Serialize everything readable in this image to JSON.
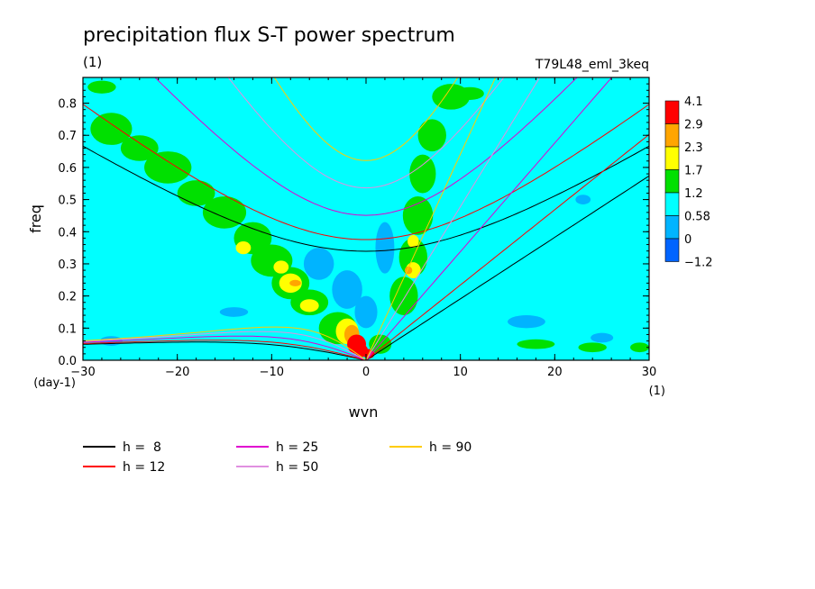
{
  "chart_data": {
    "type": "heatmap",
    "title": "precipitation flux S-T power spectrum",
    "subtitle_left": "(1)",
    "subtitle_right": "T79L48_eml_3keq",
    "xlabel": "wvn",
    "ylabel": "freq",
    "x_unit": "(1)",
    "y_unit": "(day-1)",
    "xlim": [
      -30,
      30
    ],
    "ylim": [
      0.0,
      0.88
    ],
    "x_ticks": [
      -30,
      -20,
      -10,
      0,
      10,
      20,
      30
    ],
    "x_tick_labels": [
      "−30",
      "−20",
      "−10",
      "0",
      "10",
      "20",
      "30"
    ],
    "y_ticks": [
      0.0,
      0.1,
      0.2,
      0.3,
      0.4,
      0.5,
      0.6,
      0.7,
      0.8
    ],
    "y_tick_labels": [
      "0.0",
      "0.1",
      "0.2",
      "0.3",
      "0.4",
      "0.5",
      "0.6",
      "0.7",
      "0.8"
    ],
    "colorbar": {
      "levels": [
        "4.1",
        "2.9",
        "2.3",
        "1.7",
        "1.2",
        "0.58",
        "0",
        "−1.2"
      ],
      "colors": [
        "#ff0000",
        "#ffa500",
        "#ffff00",
        "#00e000",
        "#00ffff",
        "#00b4ff",
        "#0064ff"
      ]
    },
    "dispersion_curves": [
      {
        "label": "h =  8",
        "h": 8,
        "color": "#000000"
      },
      {
        "label": "h = 12",
        "h": 12,
        "color": "#ff0000"
      },
      {
        "label": "h = 25",
        "h": 25,
        "color": "#e000d0"
      },
      {
        "label": "h = 50",
        "h": 50,
        "color": "#e090e0"
      },
      {
        "label": "h = 90",
        "h": 90,
        "color": "#ffcc00"
      }
    ],
    "background_level_color": "#00ffff",
    "blobs": [
      {
        "x": -27,
        "y": 0.72,
        "rx": 2.2,
        "ry": 0.05,
        "l": 1
      },
      {
        "x": -24,
        "y": 0.66,
        "rx": 2.0,
        "ry": 0.04,
        "l": 1
      },
      {
        "x": -21,
        "y": 0.6,
        "rx": 2.5,
        "ry": 0.05,
        "l": 1
      },
      {
        "x": -18,
        "y": 0.52,
        "rx": 2.0,
        "ry": 0.04,
        "l": 1
      },
      {
        "x": -15,
        "y": 0.46,
        "rx": 2.3,
        "ry": 0.05,
        "l": 1
      },
      {
        "x": -12,
        "y": 0.38,
        "rx": 2.0,
        "ry": 0.05,
        "l": 1
      },
      {
        "x": -10,
        "y": 0.31,
        "rx": 2.2,
        "ry": 0.05,
        "l": 1
      },
      {
        "x": -8,
        "y": 0.24,
        "rx": 2.0,
        "ry": 0.05,
        "l": 1
      },
      {
        "x": -6,
        "y": 0.18,
        "rx": 2.0,
        "ry": 0.04,
        "l": 1
      },
      {
        "x": -3,
        "y": 0.1,
        "rx": 2.0,
        "ry": 0.05,
        "l": 1
      },
      {
        "x": -13,
        "y": 0.35,
        "rx": 0.8,
        "ry": 0.02,
        "l": 2
      },
      {
        "x": -8,
        "y": 0.24,
        "rx": 1.2,
        "ry": 0.03,
        "l": 2
      },
      {
        "x": -9,
        "y": 0.29,
        "rx": 0.8,
        "ry": 0.02,
        "l": 2
      },
      {
        "x": -6,
        "y": 0.17,
        "rx": 1.0,
        "ry": 0.02,
        "l": 2
      },
      {
        "x": -2,
        "y": 0.09,
        "rx": 1.2,
        "ry": 0.04,
        "l": 2
      },
      {
        "x": -7.5,
        "y": 0.24,
        "rx": 0.6,
        "ry": 0.01,
        "l": 3
      },
      {
        "x": -1.5,
        "y": 0.08,
        "rx": 0.8,
        "ry": 0.03,
        "l": 3
      },
      {
        "x": -1,
        "y": 0.05,
        "rx": 1.0,
        "ry": 0.03,
        "l": 4
      },
      {
        "x": -0.5,
        "y": 0.03,
        "rx": 0.7,
        "ry": 0.02,
        "l": 5
      },
      {
        "x": 0.3,
        "y": 0.02,
        "rx": 0.6,
        "ry": 0.015,
        "l": 6
      },
      {
        "x": 1.5,
        "y": 0.05,
        "rx": 1.2,
        "ry": 0.03,
        "l": 1
      },
      {
        "x": 4,
        "y": 0.2,
        "rx": 1.5,
        "ry": 0.06,
        "l": 1
      },
      {
        "x": 5,
        "y": 0.32,
        "rx": 1.5,
        "ry": 0.06,
        "l": 1
      },
      {
        "x": 5.5,
        "y": 0.45,
        "rx": 1.6,
        "ry": 0.06,
        "l": 1
      },
      {
        "x": 6,
        "y": 0.58,
        "rx": 1.4,
        "ry": 0.06,
        "l": 1
      },
      {
        "x": 7,
        "y": 0.7,
        "rx": 1.5,
        "ry": 0.05,
        "l": 1
      },
      {
        "x": 9,
        "y": 0.82,
        "rx": 2.0,
        "ry": 0.04,
        "l": 1
      },
      {
        "x": 5,
        "y": 0.28,
        "rx": 0.8,
        "ry": 0.025,
        "l": 2
      },
      {
        "x": 5,
        "y": 0.37,
        "rx": 0.6,
        "ry": 0.02,
        "l": 2
      },
      {
        "x": 4.5,
        "y": 0.28,
        "rx": 0.4,
        "ry": 0.012,
        "l": 3
      },
      {
        "x": -28,
        "y": 0.85,
        "rx": 1.5,
        "ry": 0.02,
        "l": 1
      },
      {
        "x": 18,
        "y": 0.05,
        "rx": 2.0,
        "ry": 0.015,
        "l": 1
      },
      {
        "x": 24,
        "y": 0.04,
        "rx": 1.5,
        "ry": 0.015,
        "l": 1
      },
      {
        "x": 29,
        "y": 0.04,
        "rx": 1.0,
        "ry": 0.015,
        "l": 1
      },
      {
        "x": 11,
        "y": 0.83,
        "rx": 1.5,
        "ry": 0.02,
        "l": 1
      },
      {
        "x": -5,
        "y": 0.3,
        "rx": 1.6,
        "ry": 0.05,
        "l": -1
      },
      {
        "x": -2,
        "y": 0.22,
        "rx": 1.6,
        "ry": 0.06,
        "l": -1
      },
      {
        "x": 0,
        "y": 0.15,
        "rx": 1.2,
        "ry": 0.05,
        "l": -1
      },
      {
        "x": 2,
        "y": 0.35,
        "rx": 1.0,
        "ry": 0.08,
        "l": -1
      },
      {
        "x": -14,
        "y": 0.15,
        "rx": 1.5,
        "ry": 0.015,
        "l": -1
      },
      {
        "x": 17,
        "y": 0.12,
        "rx": 2.0,
        "ry": 0.02,
        "l": -1
      },
      {
        "x": 25,
        "y": 0.07,
        "rx": 1.2,
        "ry": 0.015,
        "l": -1
      },
      {
        "x": 23,
        "y": 0.5,
        "rx": 0.8,
        "ry": 0.015,
        "l": -1
      },
      {
        "x": -27,
        "y": 0.06,
        "rx": 1.2,
        "ry": 0.015,
        "l": -1
      }
    ]
  }
}
